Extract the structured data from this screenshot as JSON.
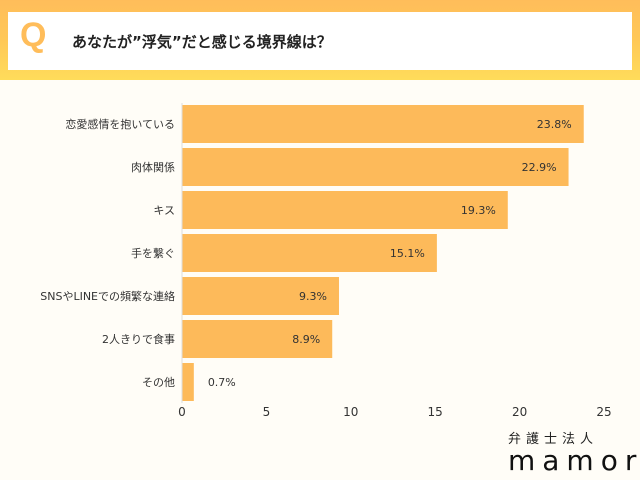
{
  "header": {
    "q_mark": "Q",
    "question": "あなたが”浮気”だと感じる境界線は？"
  },
  "logo": {
    "line1": "弁護士法人",
    "line2": "mamori"
  },
  "chart_data": {
    "type": "bar",
    "orientation": "horizontal",
    "categories": [
      "恋愛感情を抱いている",
      "肉体関係",
      "キス",
      "手を繋ぐ",
      "SNSやLINEでの頻繁な連絡",
      "2人きりで食事",
      "その他"
    ],
    "values": [
      23.8,
      22.9,
      19.3,
      15.1,
      9.3,
      8.9,
      0.7
    ],
    "data_labels": [
      "23.8%",
      "22.9%",
      "19.3%",
      "15.1%",
      "9.3%",
      "8.9%",
      "0.7%"
    ],
    "xlim": [
      0,
      25
    ],
    "xticks": [
      0,
      5,
      10,
      15,
      20,
      25
    ],
    "grid": false,
    "bar_color": "#fdba5a"
  }
}
